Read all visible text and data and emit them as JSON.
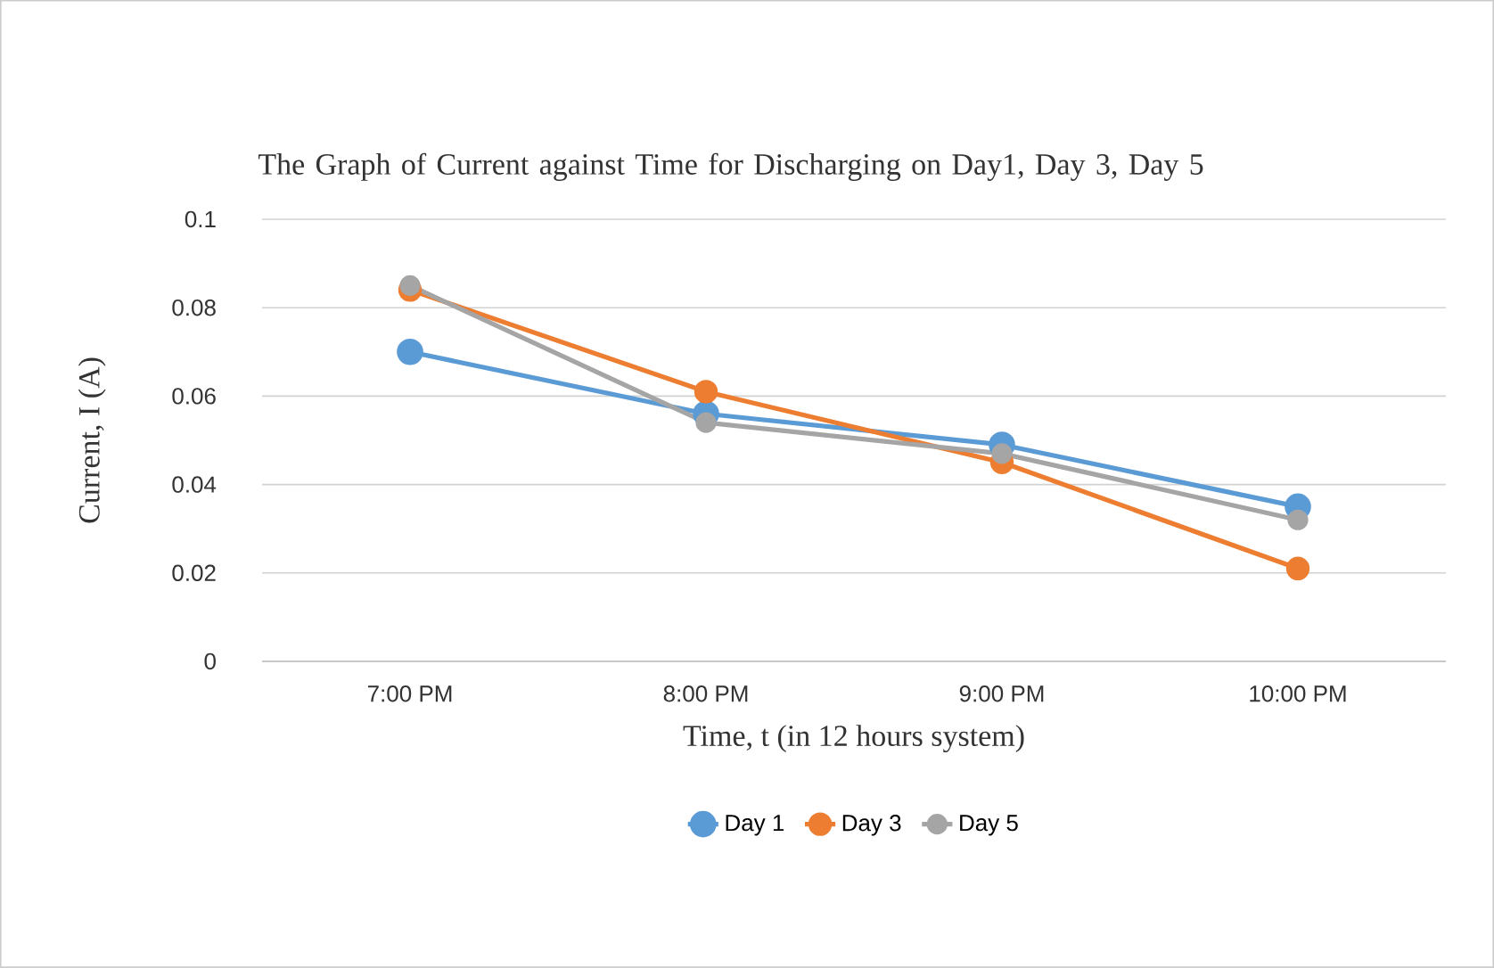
{
  "chart_data": {
    "type": "line",
    "title": "The Graph of Current against Time for Discharging on Day1, Day 3, Day 5",
    "xlabel": "Time, t (in 12 hours system)",
    "ylabel": "Current, I (A)",
    "categories": [
      "7:00 PM",
      "8:00 PM",
      "9:00 PM",
      "10:00 PM"
    ],
    "series": [
      {
        "name": "Day 1",
        "color": "#5b9bd5",
        "values": [
          0.07,
          0.056,
          0.049,
          0.035
        ]
      },
      {
        "name": "Day 3",
        "color": "#ed7d31",
        "values": [
          0.084,
          0.061,
          0.045,
          0.021
        ]
      },
      {
        "name": "Day 5",
        "color": "#a5a5a5",
        "values": [
          0.085,
          0.054,
          0.047,
          0.032
        ]
      }
    ],
    "ylim": [
      0,
      0.1
    ],
    "yticks": [
      0,
      0.02,
      0.04,
      0.06,
      0.08,
      0.1
    ],
    "grid": "y",
    "legend": "bottom",
    "marker": "circle"
  }
}
